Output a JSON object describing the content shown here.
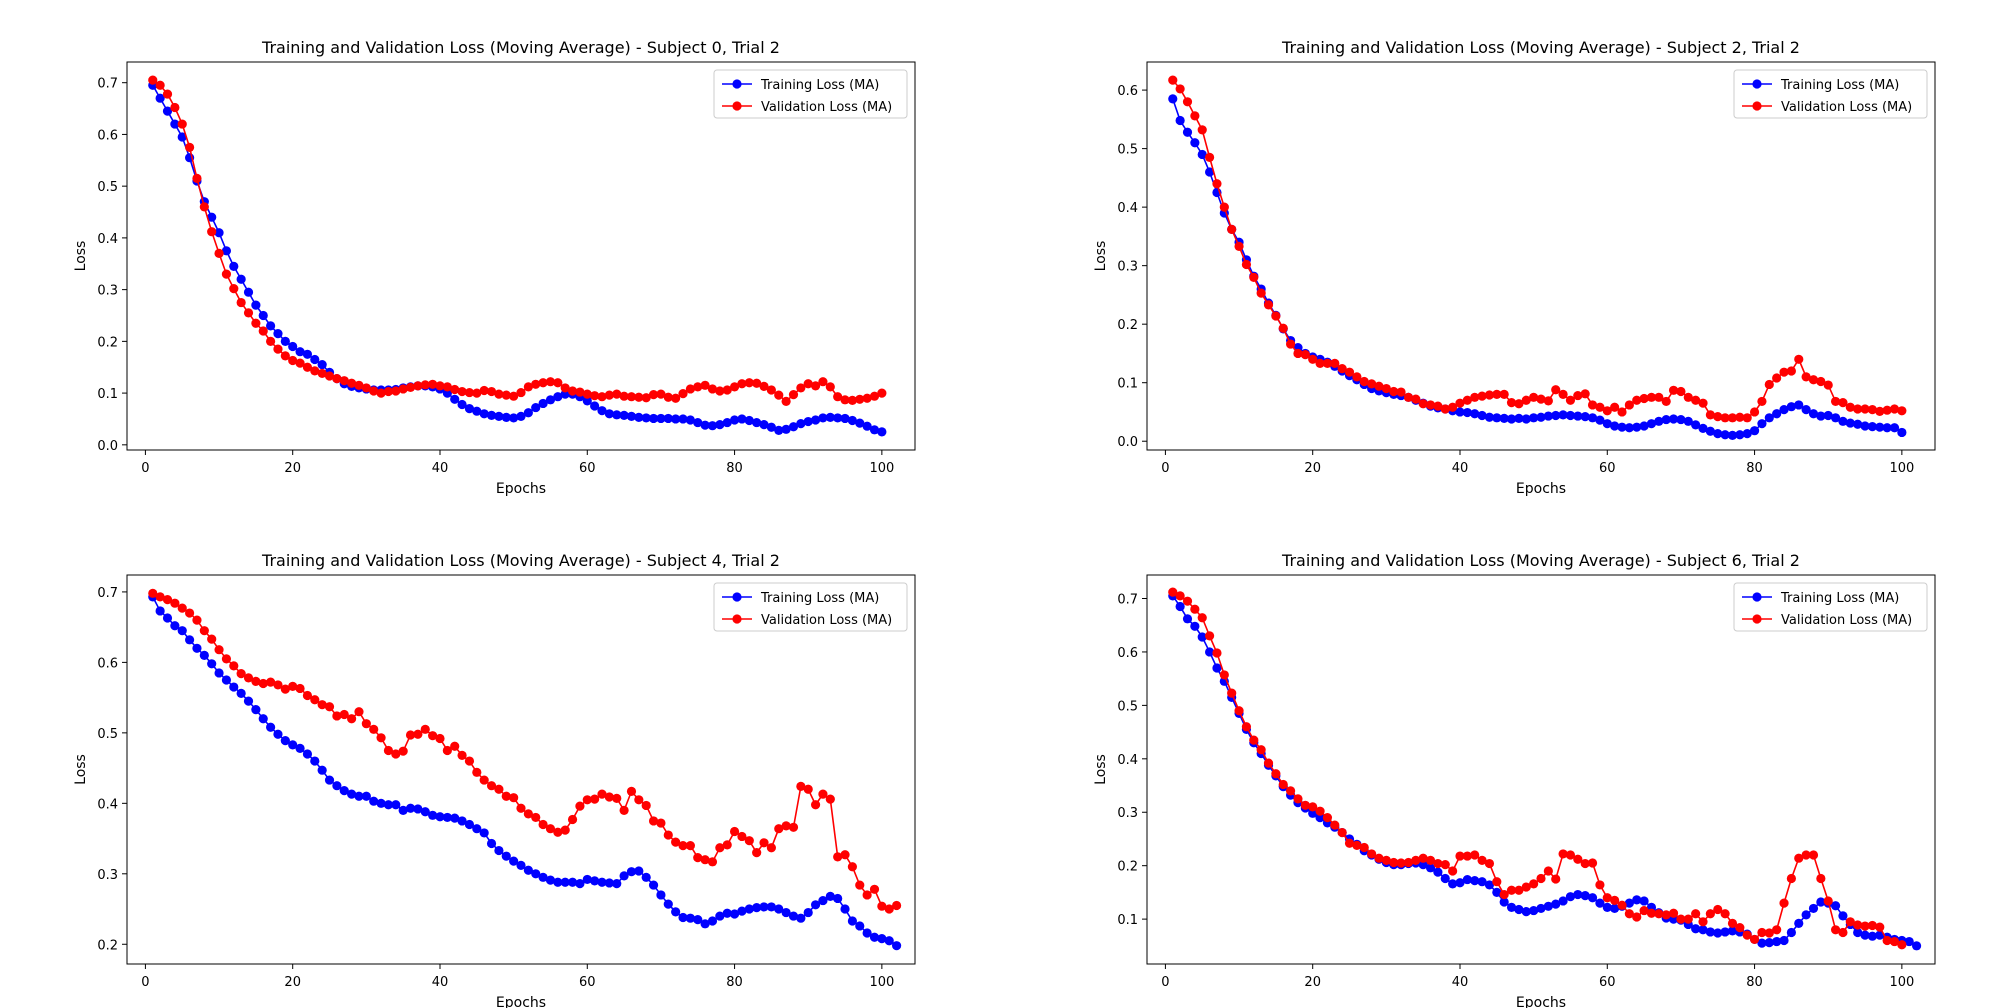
{
  "chart_data": [
    {
      "type": "line",
      "title": "Training and Validation Loss (Moving Average) - Subject 0, Trial 2",
      "xlabel": "Epochs",
      "ylabel": "Loss",
      "xlim": [
        -2.5,
        104.5
      ],
      "ylim": [
        -0.01,
        0.74
      ],
      "xticks": [
        0,
        20,
        40,
        60,
        80,
        100
      ],
      "yticks": [
        0.0,
        0.1,
        0.2,
        0.3,
        0.4,
        0.5,
        0.6,
        0.7
      ],
      "ytick_labels": [
        "0.0",
        "0.1",
        "0.2",
        "0.3",
        "0.4",
        "0.5",
        "0.6",
        "0.7"
      ],
      "grid": false,
      "legend_position": "upper right",
      "x_start": 1,
      "series": [
        {
          "name": "Training Loss (MA)",
          "color": "#0000ff",
          "values": [
            0.695,
            0.67,
            0.645,
            0.62,
            0.595,
            0.555,
            0.51,
            0.47,
            0.44,
            0.41,
            0.375,
            0.345,
            0.32,
            0.295,
            0.27,
            0.25,
            0.23,
            0.215,
            0.2,
            0.19,
            0.18,
            0.175,
            0.165,
            0.155,
            0.14,
            0.128,
            0.118,
            0.113,
            0.11,
            0.108,
            0.106,
            0.106,
            0.106,
            0.107,
            0.11,
            0.112,
            0.114,
            0.114,
            0.112,
            0.108,
            0.1,
            0.088,
            0.078,
            0.07,
            0.065,
            0.06,
            0.057,
            0.055,
            0.053,
            0.052,
            0.055,
            0.062,
            0.072,
            0.08,
            0.087,
            0.093,
            0.098,
            0.098,
            0.093,
            0.085,
            0.075,
            0.066,
            0.06,
            0.058,
            0.057,
            0.055,
            0.053,
            0.052,
            0.051,
            0.051,
            0.051,
            0.05,
            0.05,
            0.048,
            0.043,
            0.038,
            0.037,
            0.039,
            0.043,
            0.048,
            0.05,
            0.047,
            0.043,
            0.039,
            0.034,
            0.028,
            0.03,
            0.035,
            0.041,
            0.045,
            0.048,
            0.052,
            0.053,
            0.052,
            0.051,
            0.047,
            0.042,
            0.036,
            0.029,
            0.025
          ]
        },
        {
          "name": "Validation Loss (MA)",
          "color": "#ff0000",
          "values": [
            0.705,
            0.695,
            0.678,
            0.652,
            0.62,
            0.575,
            0.515,
            0.46,
            0.412,
            0.37,
            0.33,
            0.302,
            0.275,
            0.255,
            0.235,
            0.22,
            0.2,
            0.185,
            0.172,
            0.163,
            0.158,
            0.15,
            0.143,
            0.138,
            0.133,
            0.128,
            0.124,
            0.119,
            0.115,
            0.11,
            0.104,
            0.1,
            0.103,
            0.104,
            0.108,
            0.111,
            0.114,
            0.116,
            0.117,
            0.114,
            0.112,
            0.107,
            0.103,
            0.101,
            0.1,
            0.105,
            0.103,
            0.098,
            0.096,
            0.094,
            0.101,
            0.112,
            0.117,
            0.12,
            0.122,
            0.12,
            0.11,
            0.104,
            0.102,
            0.098,
            0.095,
            0.093,
            0.096,
            0.098,
            0.094,
            0.093,
            0.092,
            0.091,
            0.097,
            0.098,
            0.092,
            0.09,
            0.099,
            0.108,
            0.112,
            0.115,
            0.108,
            0.104,
            0.106,
            0.112,
            0.118,
            0.12,
            0.119,
            0.113,
            0.106,
            0.096,
            0.084,
            0.097,
            0.11,
            0.118,
            0.114,
            0.122,
            0.112,
            0.093,
            0.087,
            0.086,
            0.088,
            0.09,
            0.094,
            0.1
          ]
        }
      ]
    },
    {
      "type": "line",
      "title": "Training and Validation Loss (Moving Average) - Subject 2, Trial 2",
      "xlabel": "Epochs",
      "ylabel": "Loss",
      "xlim": [
        -2.5,
        104.5
      ],
      "ylim": [
        -0.015,
        0.648
      ],
      "xticks": [
        0,
        20,
        40,
        60,
        80,
        100
      ],
      "yticks": [
        0.0,
        0.1,
        0.2,
        0.3,
        0.4,
        0.5,
        0.6
      ],
      "ytick_labels": [
        "0.0",
        "0.1",
        "0.2",
        "0.3",
        "0.4",
        "0.5",
        "0.6"
      ],
      "grid": false,
      "legend_position": "upper right",
      "x_start": 1,
      "series": [
        {
          "name": "Training Loss (MA)",
          "color": "#0000ff",
          "values": [
            0.585,
            0.548,
            0.528,
            0.51,
            0.49,
            0.46,
            0.425,
            0.39,
            0.362,
            0.34,
            0.31,
            0.282,
            0.26,
            0.236,
            0.215,
            0.192,
            0.172,
            0.16,
            0.15,
            0.144,
            0.14,
            0.135,
            0.128,
            0.12,
            0.112,
            0.105,
            0.097,
            0.09,
            0.086,
            0.083,
            0.08,
            0.078,
            0.075,
            0.07,
            0.065,
            0.06,
            0.057,
            0.055,
            0.052,
            0.05,
            0.049,
            0.047,
            0.044,
            0.041,
            0.04,
            0.039,
            0.038,
            0.039,
            0.038,
            0.04,
            0.041,
            0.043,
            0.044,
            0.045,
            0.044,
            0.043,
            0.042,
            0.04,
            0.036,
            0.03,
            0.026,
            0.024,
            0.023,
            0.024,
            0.026,
            0.03,
            0.034,
            0.037,
            0.038,
            0.037,
            0.034,
            0.028,
            0.022,
            0.017,
            0.013,
            0.011,
            0.01,
            0.011,
            0.013,
            0.018,
            0.03,
            0.04,
            0.047,
            0.054,
            0.059,
            0.062,
            0.054,
            0.047,
            0.043,
            0.044,
            0.04,
            0.034,
            0.031,
            0.029,
            0.026,
            0.025,
            0.024,
            0.023,
            0.023,
            0.015
          ]
        },
        {
          "name": "Validation Loss (MA)",
          "color": "#ff0000",
          "values": [
            0.617,
            0.602,
            0.58,
            0.556,
            0.532,
            0.485,
            0.44,
            0.4,
            0.362,
            0.333,
            0.302,
            0.28,
            0.253,
            0.233,
            0.214,
            0.193,
            0.166,
            0.15,
            0.148,
            0.14,
            0.133,
            0.133,
            0.133,
            0.124,
            0.118,
            0.11,
            0.102,
            0.098,
            0.094,
            0.09,
            0.085,
            0.084,
            0.075,
            0.072,
            0.064,
            0.062,
            0.06,
            0.055,
            0.058,
            0.065,
            0.07,
            0.075,
            0.077,
            0.079,
            0.08,
            0.08,
            0.066,
            0.064,
            0.07,
            0.075,
            0.072,
            0.069,
            0.088,
            0.08,
            0.07,
            0.078,
            0.081,
            0.062,
            0.058,
            0.052,
            0.058,
            0.05,
            0.062,
            0.07,
            0.073,
            0.075,
            0.075,
            0.068,
            0.087,
            0.085,
            0.075,
            0.07,
            0.065,
            0.045,
            0.042,
            0.04,
            0.04,
            0.041,
            0.04,
            0.05,
            0.068,
            0.097,
            0.108,
            0.118,
            0.12,
            0.14,
            0.11,
            0.105,
            0.102,
            0.096,
            0.068,
            0.066,
            0.058,
            0.055,
            0.055,
            0.054,
            0.051,
            0.053,
            0.055,
            0.052
          ]
        }
      ]
    },
    {
      "type": "line",
      "title": "Training and Validation Loss (Moving Average) - Subject 4, Trial 2",
      "xlabel": "Epochs",
      "ylabel": "Loss",
      "xlim": [
        -2.5,
        104.5
      ],
      "ylim": [
        0.172,
        0.724
      ],
      "xticks": [
        0,
        20,
        40,
        60,
        80,
        100
      ],
      "yticks": [
        0.2,
        0.3,
        0.4,
        0.5,
        0.6,
        0.7
      ],
      "ytick_labels": [
        "0.2",
        "0.3",
        "0.4",
        "0.5",
        "0.6",
        "0.7"
      ],
      "grid": false,
      "legend_position": "upper right",
      "x_start": 1,
      "series": [
        {
          "name": "Training Loss (MA)",
          "color": "#0000ff",
          "values": [
            0.693,
            0.673,
            0.663,
            0.652,
            0.645,
            0.632,
            0.62,
            0.61,
            0.598,
            0.585,
            0.575,
            0.565,
            0.556,
            0.545,
            0.533,
            0.52,
            0.508,
            0.498,
            0.489,
            0.483,
            0.478,
            0.47,
            0.46,
            0.447,
            0.433,
            0.425,
            0.418,
            0.413,
            0.41,
            0.41,
            0.403,
            0.4,
            0.398,
            0.398,
            0.39,
            0.393,
            0.392,
            0.388,
            0.383,
            0.381,
            0.38,
            0.379,
            0.375,
            0.37,
            0.364,
            0.358,
            0.343,
            0.333,
            0.325,
            0.318,
            0.312,
            0.305,
            0.3,
            0.295,
            0.291,
            0.288,
            0.288,
            0.288,
            0.286,
            0.292,
            0.29,
            0.288,
            0.287,
            0.286,
            0.297,
            0.303,
            0.304,
            0.295,
            0.284,
            0.27,
            0.257,
            0.246,
            0.238,
            0.237,
            0.235,
            0.229,
            0.233,
            0.24,
            0.244,
            0.243,
            0.247,
            0.25,
            0.252,
            0.253,
            0.253,
            0.25,
            0.245,
            0.24,
            0.237,
            0.245,
            0.256,
            0.262,
            0.268,
            0.265,
            0.25,
            0.233,
            0.226,
            0.216,
            0.21,
            0.208,
            0.205,
            0.198
          ]
        },
        {
          "name": "Validation Loss (MA)",
          "color": "#ff0000",
          "values": [
            0.698,
            0.693,
            0.689,
            0.684,
            0.677,
            0.67,
            0.66,
            0.645,
            0.633,
            0.618,
            0.605,
            0.595,
            0.584,
            0.578,
            0.573,
            0.57,
            0.572,
            0.568,
            0.562,
            0.566,
            0.563,
            0.553,
            0.547,
            0.54,
            0.537,
            0.524,
            0.526,
            0.52,
            0.53,
            0.513,
            0.505,
            0.493,
            0.475,
            0.47,
            0.474,
            0.497,
            0.498,
            0.505,
            0.496,
            0.492,
            0.475,
            0.481,
            0.468,
            0.46,
            0.444,
            0.433,
            0.425,
            0.42,
            0.41,
            0.408,
            0.393,
            0.385,
            0.38,
            0.37,
            0.364,
            0.359,
            0.362,
            0.377,
            0.396,
            0.405,
            0.406,
            0.413,
            0.409,
            0.407,
            0.39,
            0.417,
            0.405,
            0.397,
            0.375,
            0.372,
            0.355,
            0.345,
            0.34,
            0.34,
            0.323,
            0.32,
            0.317,
            0.337,
            0.341,
            0.36,
            0.353,
            0.347,
            0.33,
            0.344,
            0.337,
            0.364,
            0.368,
            0.366,
            0.424,
            0.42,
            0.398,
            0.413,
            0.406,
            0.324,
            0.327,
            0.31,
            0.284,
            0.27,
            0.278,
            0.254,
            0.25,
            0.255
          ]
        }
      ]
    },
    {
      "type": "line",
      "title": "Training and Validation Loss (Moving Average) - Subject 6, Trial 2",
      "xlabel": "Epochs",
      "ylabel": "Loss",
      "xlim": [
        -2.5,
        104.5
      ],
      "ylim": [
        0.016,
        0.744
      ],
      "xticks": [
        0,
        20,
        40,
        60,
        80,
        100
      ],
      "yticks": [
        0.1,
        0.2,
        0.3,
        0.4,
        0.5,
        0.6,
        0.7
      ],
      "ytick_labels": [
        "0.1",
        "0.2",
        "0.3",
        "0.4",
        "0.5",
        "0.6",
        "0.7"
      ],
      "grid": false,
      "legend_position": "upper right",
      "x_start": 1,
      "series": [
        {
          "name": "Training Loss (MA)",
          "color": "#0000ff",
          "values": [
            0.705,
            0.685,
            0.662,
            0.648,
            0.628,
            0.6,
            0.57,
            0.545,
            0.515,
            0.485,
            0.455,
            0.43,
            0.41,
            0.388,
            0.368,
            0.348,
            0.332,
            0.318,
            0.308,
            0.298,
            0.29,
            0.28,
            0.272,
            0.262,
            0.25,
            0.24,
            0.228,
            0.22,
            0.212,
            0.206,
            0.202,
            0.202,
            0.204,
            0.205,
            0.202,
            0.196,
            0.188,
            0.176,
            0.166,
            0.168,
            0.174,
            0.172,
            0.17,
            0.164,
            0.15,
            0.132,
            0.122,
            0.118,
            0.114,
            0.116,
            0.12,
            0.124,
            0.128,
            0.134,
            0.142,
            0.146,
            0.144,
            0.14,
            0.13,
            0.122,
            0.12,
            0.124,
            0.13,
            0.136,
            0.134,
            0.122,
            0.112,
            0.102,
            0.1,
            0.098,
            0.09,
            0.082,
            0.08,
            0.076,
            0.074,
            0.076,
            0.078,
            0.076,
            0.072,
            0.062,
            0.055,
            0.056,
            0.058,
            0.06,
            0.075,
            0.092,
            0.108,
            0.12,
            0.132,
            0.13,
            0.125,
            0.106,
            0.09,
            0.075,
            0.07,
            0.068,
            0.07,
            0.066,
            0.062,
            0.06,
            0.058,
            0.05
          ]
        },
        {
          "name": "Validation Loss (MA)",
          "color": "#ff0000",
          "values": [
            0.712,
            0.705,
            0.695,
            0.68,
            0.664,
            0.63,
            0.598,
            0.557,
            0.523,
            0.49,
            0.46,
            0.435,
            0.417,
            0.392,
            0.372,
            0.352,
            0.34,
            0.325,
            0.313,
            0.31,
            0.302,
            0.29,
            0.276,
            0.262,
            0.242,
            0.238,
            0.234,
            0.222,
            0.214,
            0.21,
            0.206,
            0.205,
            0.206,
            0.21,
            0.214,
            0.21,
            0.204,
            0.202,
            0.19,
            0.218,
            0.218,
            0.22,
            0.21,
            0.204,
            0.17,
            0.146,
            0.154,
            0.154,
            0.16,
            0.166,
            0.176,
            0.19,
            0.175,
            0.222,
            0.22,
            0.212,
            0.204,
            0.205,
            0.164,
            0.14,
            0.135,
            0.126,
            0.11,
            0.104,
            0.116,
            0.111,
            0.11,
            0.108,
            0.111,
            0.1,
            0.1,
            0.11,
            0.095,
            0.11,
            0.118,
            0.11,
            0.092,
            0.084,
            0.07,
            0.062,
            0.075,
            0.074,
            0.08,
            0.13,
            0.176,
            0.214,
            0.22,
            0.22,
            0.176,
            0.134,
            0.08,
            0.075,
            0.095,
            0.089,
            0.087,
            0.088,
            0.085,
            0.06,
            0.058,
            0.052
          ]
        }
      ]
    }
  ]
}
